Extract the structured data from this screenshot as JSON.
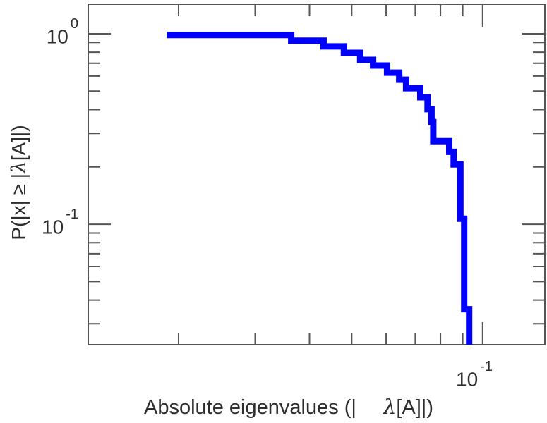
{
  "figure": {
    "background": "#ffffff",
    "frame_color": "#555555",
    "text_color": "#2e2e2e",
    "curve_color": "#0000ff"
  },
  "axes": {
    "x": {
      "label": {
        "part1": "Absolute eigenvalues (|",
        "lambda": "λ",
        "part2": "[A]|)"
      },
      "scale": "log",
      "min": 0.0124,
      "max": 0.139,
      "major_ticks": [
        {
          "value": 0.1,
          "label_base": "10",
          "label_exp": "-1"
        }
      ],
      "minor_ticks": [
        0.02,
        0.03,
        0.04,
        0.05,
        0.06,
        0.07,
        0.08,
        0.09
      ]
    },
    "y": {
      "label": {
        "part1": "P(|x| ≥ |",
        "lambda": "λ",
        "part2": "[A]|)"
      },
      "scale": "log",
      "min": 0.0233,
      "max": 1.43,
      "major_ticks": [
        {
          "value": 1,
          "label_base": "10",
          "label_exp": "0"
        },
        {
          "value": 0.1,
          "label_base": "10",
          "label_exp": "-1"
        }
      ],
      "minor_ticks": [
        0.9,
        0.8,
        0.7,
        0.6,
        0.5,
        0.4,
        0.3,
        0.2,
        0.09,
        0.08,
        0.07,
        0.06,
        0.05,
        0.04,
        0.03
      ]
    }
  },
  "chart_data": {
    "type": "line",
    "subtype": "step-ccdf",
    "title": "",
    "xlabel": "Absolute eigenvalues (| λ[A]|)",
    "ylabel": "P(|x| ≥ |λ[A]|)",
    "x_scale": "log",
    "y_scale": "log",
    "xlim": [
      0.0124,
      0.139
    ],
    "ylim": [
      0.0233,
      1.43
    ],
    "x_ticklabels": [
      "10^-1"
    ],
    "y_ticklabels": [
      "10^0",
      "10^-1"
    ],
    "grid": false,
    "legend": false,
    "series": [
      {
        "name": "absolute-eigenvalue-ccdf",
        "color": "#0000ff",
        "step": true,
        "points": [
          [
            0.0188,
            0.985
          ],
          [
            0.0363,
            0.92
          ],
          [
            0.0431,
            0.858
          ],
          [
            0.048,
            0.794
          ],
          [
            0.0523,
            0.729
          ],
          [
            0.056,
            0.681
          ],
          [
            0.0603,
            0.625
          ],
          [
            0.0643,
            0.574
          ],
          [
            0.0667,
            0.518
          ],
          [
            0.0719,
            0.464
          ],
          [
            0.0747,
            0.402
          ],
          [
            0.0763,
            0.344
          ],
          [
            0.077,
            0.273
          ],
          [
            0.0838,
            0.24
          ],
          [
            0.0858,
            0.206
          ],
          [
            0.0889,
            0.107
          ],
          [
            0.0907,
            0.0358
          ],
          [
            0.0931,
            0.0231
          ]
        ]
      }
    ]
  }
}
